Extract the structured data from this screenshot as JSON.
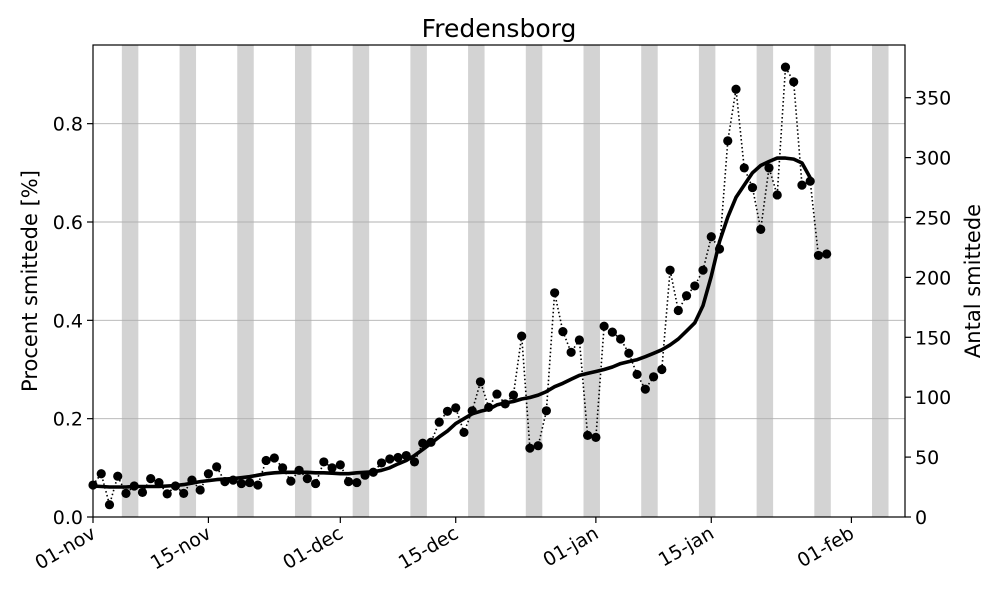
{
  "chart_data": {
    "type": "line",
    "title": "Fredensborg",
    "ylabel": "Procent smittede [%]",
    "ylabel_right": "Antal smittede",
    "ylim": [
      0,
      0.96
    ],
    "ylim_right": [
      0,
      394
    ],
    "yticks": [
      0.0,
      0.2,
      0.4,
      0.6,
      0.8
    ],
    "yticks_right": [
      0,
      50,
      100,
      150,
      200,
      250,
      300,
      350
    ],
    "x_start": "01-nov",
    "xticks": [
      {
        "label": "01-nov",
        "day": 0
      },
      {
        "label": "15-nov",
        "day": 14
      },
      {
        "label": "01-dec",
        "day": 30
      },
      {
        "label": "15-dec",
        "day": 44
      },
      {
        "label": "01-jan",
        "day": 61
      },
      {
        "label": "15-jan",
        "day": 75
      },
      {
        "label": "01-feb",
        "day": 92
      }
    ],
    "grid": "horizontal",
    "weekend_shading_color": "#d3d3d3",
    "weekend_start_days": [
      4,
      11,
      18,
      25,
      32,
      39,
      46,
      53,
      60,
      67,
      74,
      81,
      88,
      95
    ],
    "series": [
      {
        "style": "dotted-markers",
        "color": "#000000",
        "values": [
          0.065,
          0.088,
          0.025,
          0.083,
          0.048,
          0.063,
          0.05,
          0.078,
          0.07,
          0.047,
          0.063,
          0.048,
          0.075,
          0.055,
          0.088,
          0.102,
          0.072,
          0.075,
          0.068,
          0.07,
          0.065,
          0.115,
          0.12,
          0.1,
          0.073,
          0.095,
          0.078,
          0.068,
          0.112,
          0.1,
          0.106,
          0.072,
          0.07,
          0.085,
          0.091,
          0.11,
          0.118,
          0.121,
          0.125,
          0.112,
          0.15,
          0.152,
          0.193,
          0.215,
          0.222,
          0.172,
          0.216,
          0.275,
          0.223,
          0.25,
          0.23,
          0.248,
          0.368,
          0.14,
          0.145,
          0.216,
          0.456,
          0.377,
          0.335,
          0.36,
          0.166,
          0.162,
          0.388,
          0.376,
          0.362,
          0.333,
          0.29,
          0.26,
          0.285,
          0.3,
          0.502,
          0.42,
          0.45,
          0.47,
          0.502,
          0.57,
          0.545,
          0.765,
          0.87,
          0.71,
          0.67,
          0.585,
          0.71,
          0.655,
          0.915,
          0.885,
          0.675,
          0.683,
          0.532,
          0.535
        ]
      },
      {
        "style": "solid-thick",
        "color": "#000000",
        "values": [
          0.063,
          0.062,
          0.061,
          0.061,
          0.061,
          0.062,
          0.062,
          0.062,
          0.062,
          0.063,
          0.064,
          0.066,
          0.069,
          0.072,
          0.074,
          0.076,
          0.077,
          0.078,
          0.08,
          0.082,
          0.085,
          0.088,
          0.09,
          0.091,
          0.091,
          0.091,
          0.091,
          0.09,
          0.09,
          0.089,
          0.088,
          0.088,
          0.09,
          0.091,
          0.092,
          0.095,
          0.1,
          0.108,
          0.115,
          0.125,
          0.137,
          0.15,
          0.163,
          0.175,
          0.19,
          0.2,
          0.21,
          0.215,
          0.219,
          0.228,
          0.232,
          0.235,
          0.24,
          0.243,
          0.248,
          0.255,
          0.265,
          0.272,
          0.28,
          0.288,
          0.292,
          0.296,
          0.3,
          0.305,
          0.312,
          0.316,
          0.32,
          0.326,
          0.333,
          0.34,
          0.35,
          0.362,
          0.378,
          0.395,
          0.43,
          0.49,
          0.56,
          0.61,
          0.65,
          0.675,
          0.7,
          0.715,
          0.723,
          0.73,
          0.73,
          0.728,
          0.72,
          0.69
        ]
      }
    ]
  }
}
